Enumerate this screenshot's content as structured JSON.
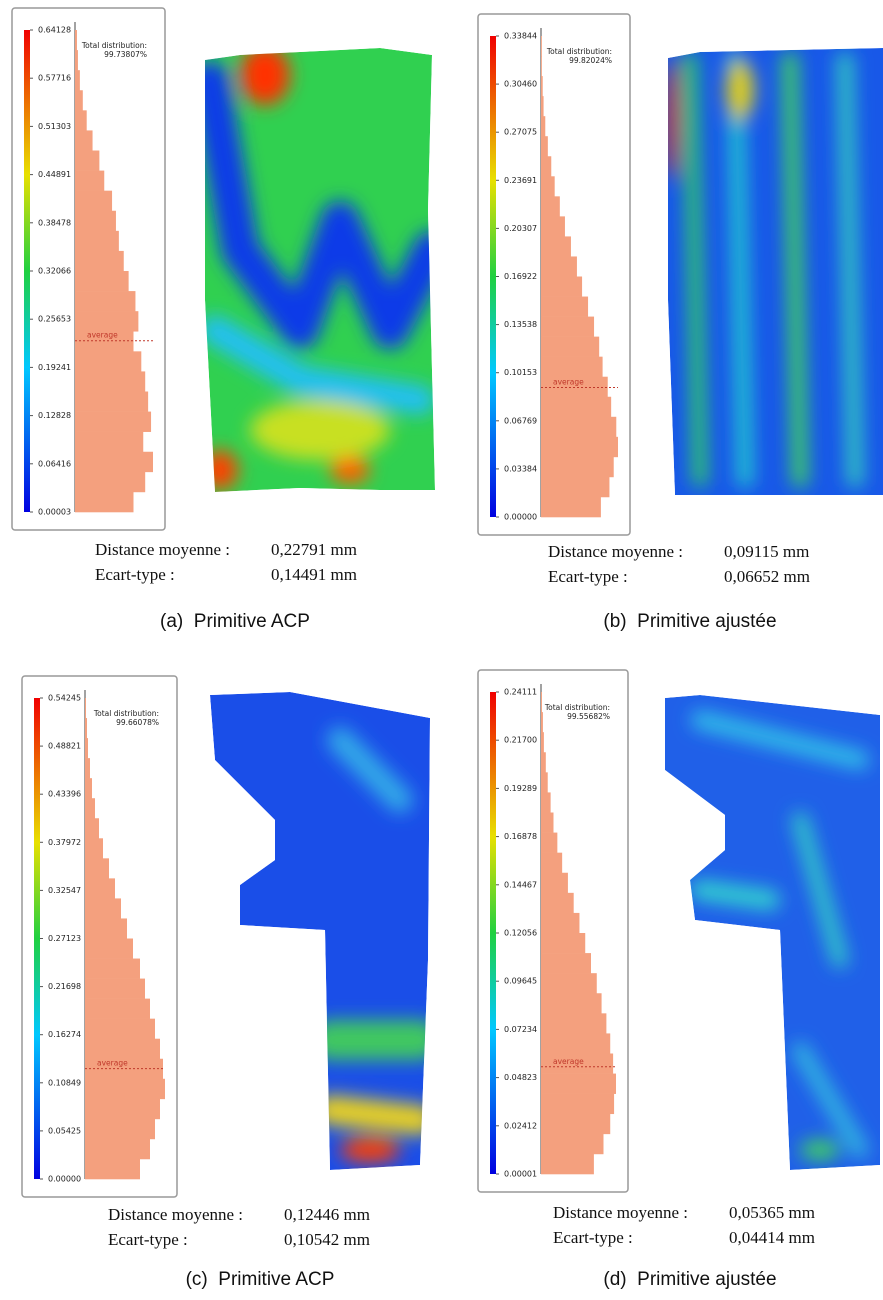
{
  "panels": [
    {
      "scale_ticks": [
        0.64128,
        0.57716,
        0.51303,
        0.44891,
        0.38478,
        0.32066,
        0.25653,
        0.19241,
        0.12828,
        0.06416,
        3e-05
      ],
      "total_label": "Total distribution:",
      "total_value": "99.73807%",
      "average_label": "average",
      "histogram": [
        2,
        3,
        5,
        8,
        12,
        18,
        25,
        30,
        38,
        42,
        45,
        50,
        55,
        62,
        65,
        60,
        68,
        72,
        75,
        78,
        70,
        80,
        72,
        60
      ],
      "distance_label": "Distance moyenne :",
      "distance": {
        "value": 0.22791,
        "label": "0,22791 mm"
      },
      "std_label": "Ecart-type :",
      "std": {
        "value": 0.14491,
        "label": "0,14491 mm"
      },
      "caption": "(a)  Primitive ACP"
    },
    {
      "scale_ticks": [
        0.33844,
        {
          "value": 0.3046,
          "label": "0.30460"
        },
        0.27075,
        0.23691,
        0.20307,
        0.16922,
        0.13538,
        0.10153,
        0.06769,
        0.03384,
        {
          "value": 0,
          "label": "0.00000"
        }
      ],
      "total_label": "Total distribution:",
      "total_value": "99.82024%",
      "average_label": "average",
      "histogram": [
        1,
        1,
        2,
        3,
        5,
        8,
        12,
        16,
        22,
        28,
        35,
        42,
        48,
        55,
        62,
        68,
        72,
        78,
        82,
        88,
        90,
        85,
        80,
        70
      ],
      "distance_label": "Distance moyenne :",
      "distance": {
        "value": 0.09115,
        "label": "0,09115 mm"
      },
      "std_label": "Ecart-type :",
      "std": {
        "value": 0.06652,
        "label": "0,06652 mm"
      },
      "caption": "(b)  Primitive ajustée"
    },
    {
      "scale_ticks": [
        0.54245,
        0.48821,
        0.43396,
        0.37972,
        0.32547,
        0.27123,
        0.21698,
        0.16274,
        0.10849,
        0.05425,
        {
          "value": 0,
          "label": "0.00000"
        }
      ],
      "total_label": "Total distribution:",
      "total_value": "99.66078%",
      "average_label": "average",
      "histogram": [
        1,
        2,
        3,
        5,
        7,
        10,
        14,
        18,
        24,
        30,
        36,
        42,
        48,
        55,
        60,
        65,
        70,
        75,
        78,
        80,
        75,
        70,
        65,
        55
      ],
      "distance_label": "Distance moyenne :",
      "distance": {
        "value": 0.12446,
        "label": "0,12446 mm"
      },
      "std_label": "Ecart-type :",
      "std": {
        "value": 0.10542,
        "label": "0,10542 mm"
      },
      "caption": "(c)  Primitive ACP"
    },
    {
      "scale_ticks": [
        0.24111,
        {
          "value": 0.217,
          "label": "0.21700"
        },
        0.19289,
        0.16878,
        0.14467,
        0.12056,
        0.09645,
        0.07234,
        0.04823,
        0.02412,
        1e-05
      ],
      "total_label": "Total distribution:",
      "total_value": "99.55682%",
      "average_label": "average",
      "histogram": [
        1,
        2,
        3,
        5,
        7,
        10,
        13,
        17,
        22,
        28,
        34,
        40,
        46,
        52,
        58,
        63,
        68,
        72,
        75,
        78,
        76,
        72,
        65,
        55
      ],
      "distance_label": "Distance moyenne :",
      "distance": {
        "value": 0.05365,
        "label": "0,05365 mm"
      },
      "std_label": "Ecart-type :",
      "std": {
        "value": 0.04414,
        "label": "0,04414 mm"
      },
      "caption": "(d)  Primitive ajustée"
    }
  ]
}
